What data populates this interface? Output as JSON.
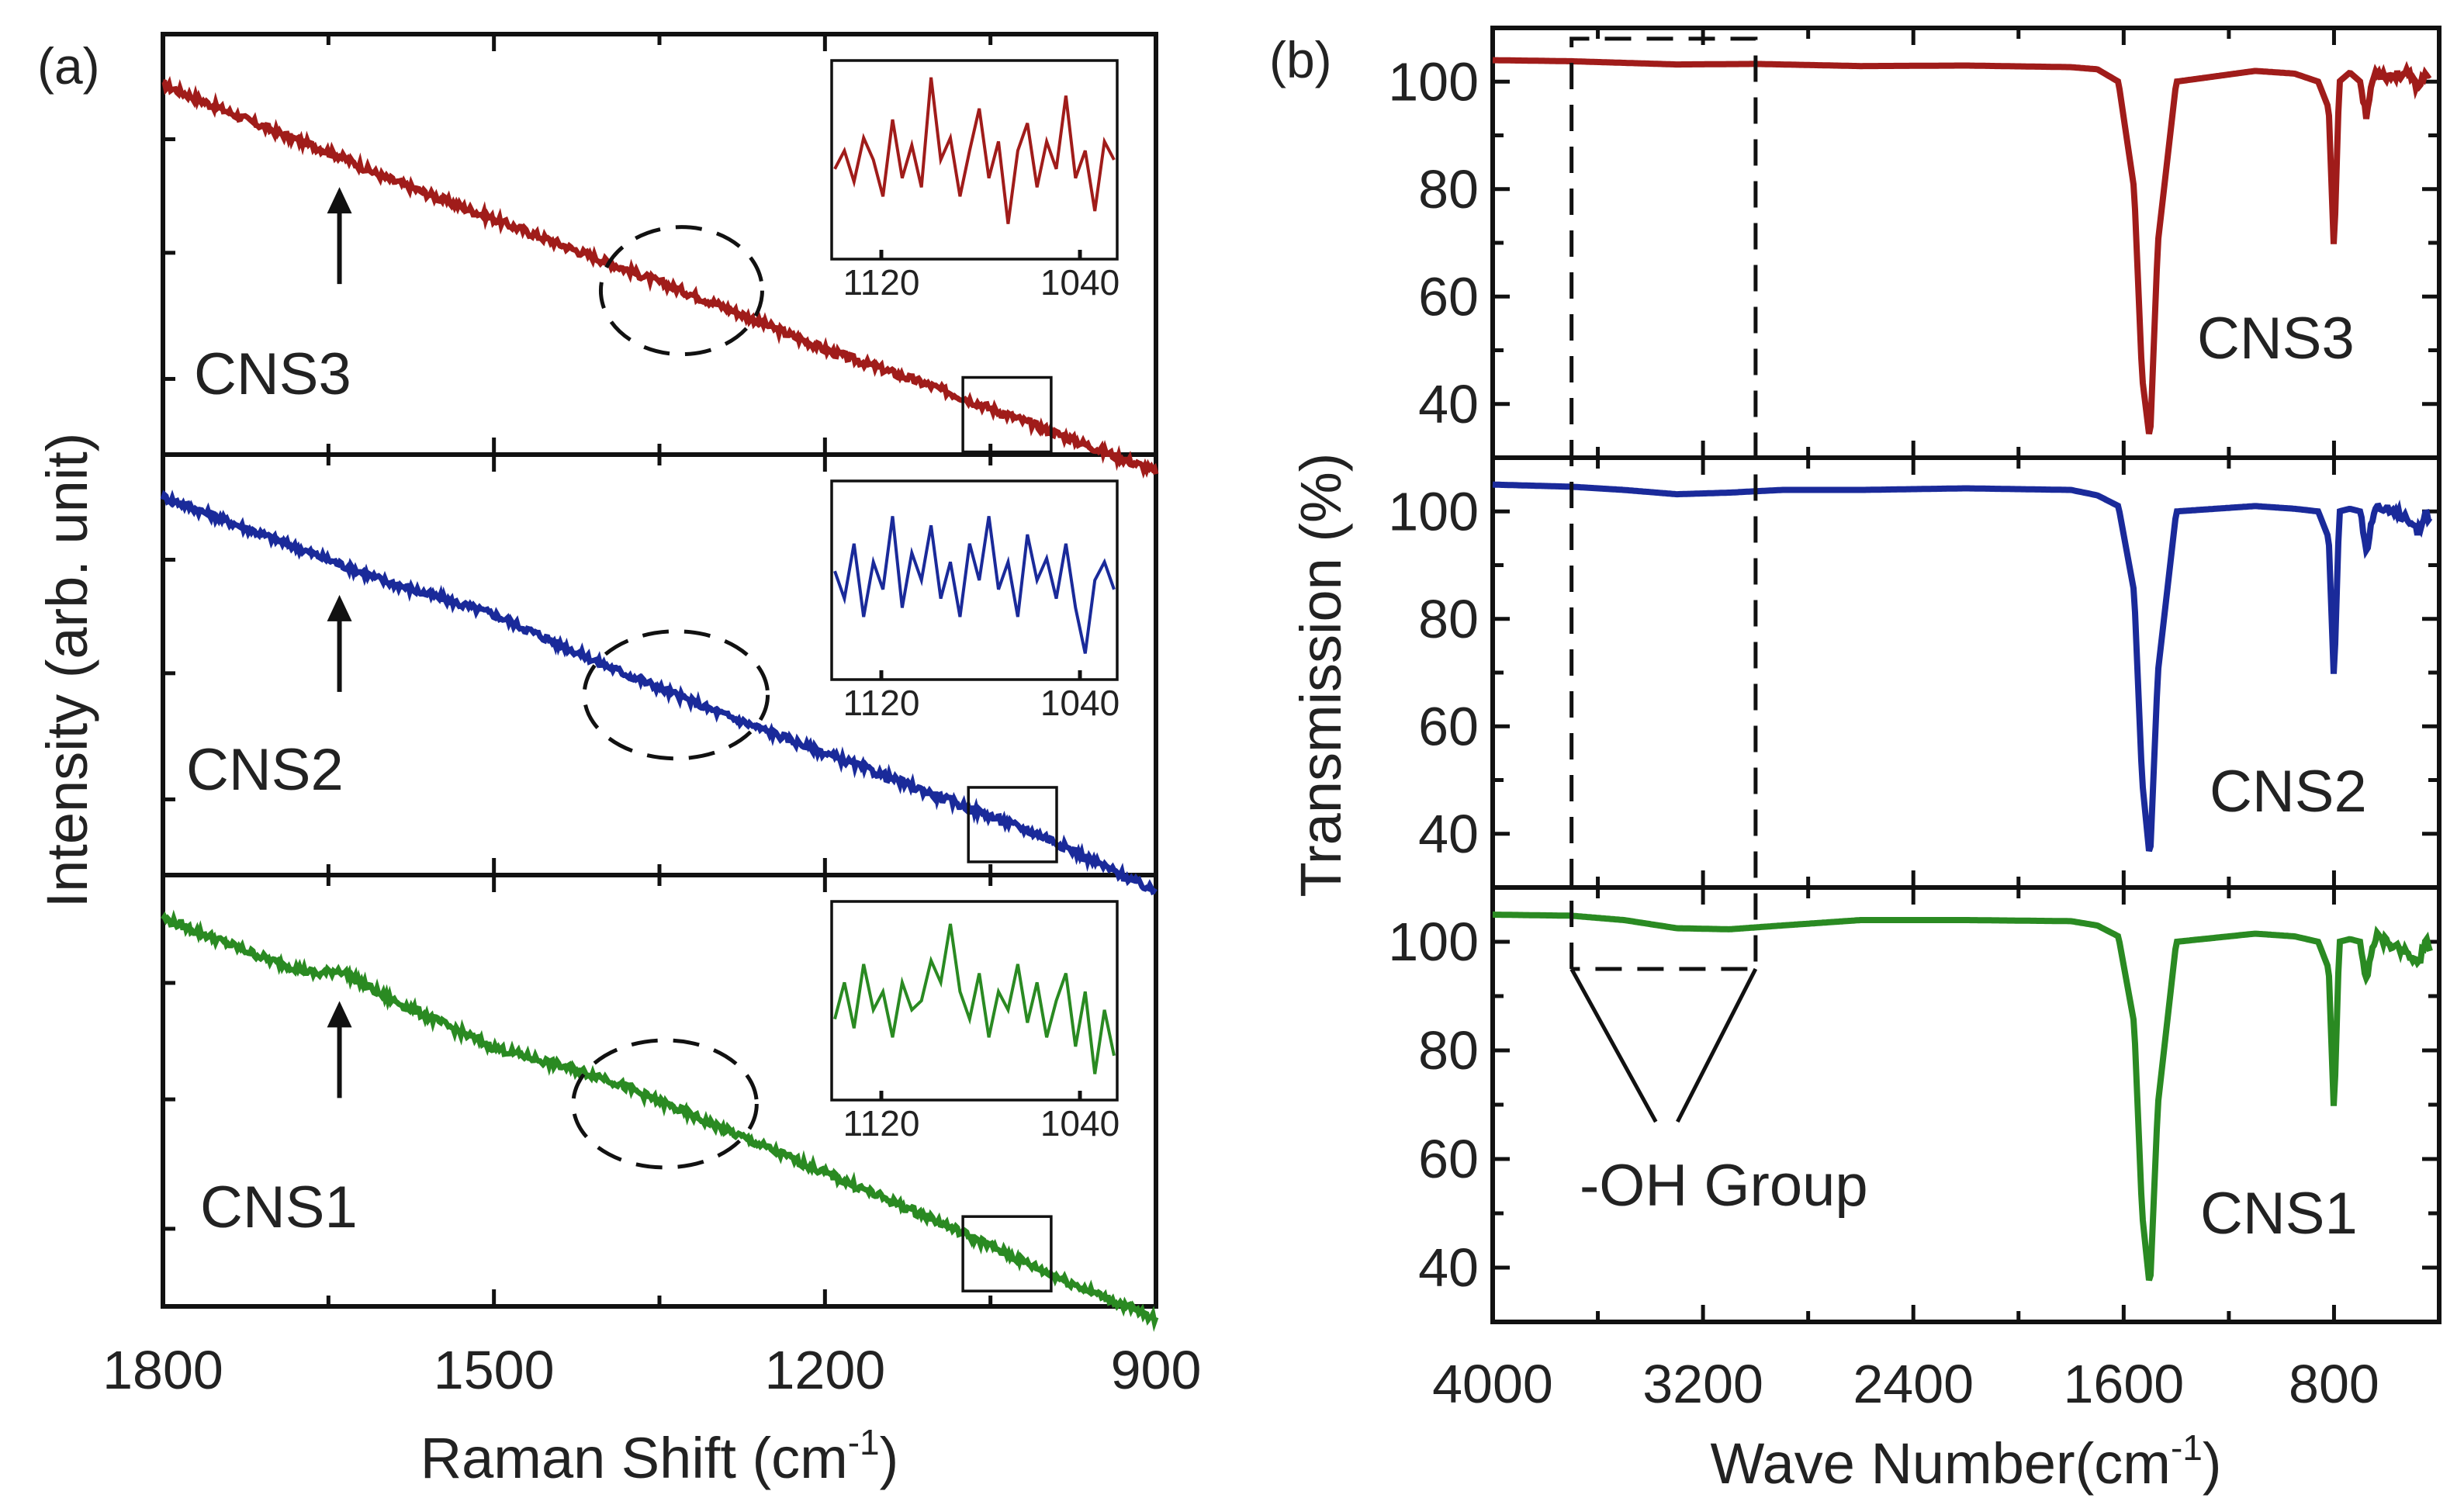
{
  "chart_data": [
    {
      "panel": "(a)",
      "type": "line",
      "title": "",
      "xlabel": "Raman Shift (cm",
      "xlabel_sup": "-1",
      "xlabel_close": ")",
      "ylabel": "Intensity (arb. unit)",
      "xlim": [
        1800,
        900
      ],
      "xticks": [
        "1800",
        "1500",
        "1200",
        "900"
      ],
      "series": [
        {
          "name": "CNS3",
          "color": "#a01c1a",
          "x": [
            1800,
            1700,
            1640,
            1600,
            1500,
            1400,
            1300,
            1200,
            1100,
            1000,
            900
          ],
          "y": [
            0.88,
            0.77,
            0.71,
            0.66,
            0.56,
            0.46,
            0.36,
            0.25,
            0.16,
            0.06,
            -0.04
          ],
          "annotations": {
            "arrow_at": 1640,
            "dashed_ellipse": [
              1375,
              1285
            ],
            "box": [
              1075,
              995
            ],
            "inset": {
              "x_range": [
                1140,
                1025
              ],
              "ticks": [
                "1120",
                "1040"
              ],
              "y": [
                0.45,
                0.55,
                0.38,
                0.62,
                0.5,
                0.3,
                0.72,
                0.4,
                0.58,
                0.35,
                0.95,
                0.5,
                0.62,
                0.3,
                0.55,
                0.78,
                0.4,
                0.6,
                0.15,
                0.55,
                0.7,
                0.35,
                0.6,
                0.45,
                0.85,
                0.4,
                0.55,
                0.22,
                0.6,
                0.5
              ]
            }
          }
        },
        {
          "name": "CNS2",
          "color": "#1a2a9a",
          "x": [
            1800,
            1700,
            1640,
            1600,
            1500,
            1400,
            1300,
            1200,
            1100,
            1000,
            900
          ],
          "y": [
            0.9,
            0.8,
            0.74,
            0.7,
            0.62,
            0.5,
            0.39,
            0.29,
            0.19,
            0.09,
            -0.04
          ],
          "annotations": {
            "arrow_at": 1640,
            "dashed_ellipse": [
              1390,
              1280
            ],
            "box": [
              1070,
              990
            ],
            "inset": {
              "x_range": [
                1140,
                1025
              ],
              "ticks": [
                "1120",
                "1040"
              ],
              "y": [
                0.55,
                0.4,
                0.7,
                0.3,
                0.6,
                0.45,
                0.85,
                0.35,
                0.65,
                0.5,
                0.8,
                0.4,
                0.6,
                0.3,
                0.7,
                0.5,
                0.85,
                0.45,
                0.6,
                0.3,
                0.75,
                0.5,
                0.62,
                0.4,
                0.7,
                0.35,
                0.1,
                0.5,
                0.6,
                0.45
              ]
            }
          }
        },
        {
          "name": "CNS1",
          "color": "#2a8a22",
          "x": [
            1800,
            1700,
            1660,
            1640,
            1600,
            1500,
            1400,
            1300,
            1200,
            1100,
            1000,
            900
          ],
          "y": [
            0.9,
            0.8,
            0.77,
            0.78,
            0.72,
            0.6,
            0.53,
            0.42,
            0.31,
            0.2,
            0.08,
            -0.03
          ],
          "annotations": {
            "arrow_at": 1640,
            "dashed_ellipse": [
              1400,
              1290
            ],
            "box": [
              1075,
              995
            ],
            "inset": {
              "x_range": [
                1140,
                1025
              ],
              "ticks": [
                "1120",
                "1040"
              ],
              "y": [
                0.4,
                0.6,
                0.35,
                0.7,
                0.45,
                0.55,
                0.3,
                0.6,
                0.45,
                0.5,
                0.72,
                0.6,
                0.92,
                0.55,
                0.4,
                0.65,
                0.3,
                0.55,
                0.45,
                0.7,
                0.38,
                0.6,
                0.3,
                0.5,
                0.65,
                0.25,
                0.55,
                0.1,
                0.45,
                0.2
              ]
            }
          }
        }
      ]
    },
    {
      "panel": "(b)",
      "type": "line",
      "title": "",
      "xlabel": "Wave Number(cm",
      "xlabel_sup": "-1",
      "xlabel_close": ")",
      "ylabel": "Transmission (%)",
      "xlim": [
        4000,
        400
      ],
      "xticks": [
        "4000",
        "3200",
        "2400",
        "1600",
        "800"
      ],
      "ylim": [
        30,
        110
      ],
      "yticks": [
        "40",
        "60",
        "80",
        "100"
      ],
      "annotation_label": "-OH Group",
      "oh_region": [
        3700,
        3000
      ],
      "series": [
        {
          "name": "CNS3",
          "color": "#a01c1a",
          "x": [
            4000,
            3700,
            3500,
            3300,
            3000,
            2600,
            2200,
            1800,
            1700,
            1620,
            1560,
            1530,
            1500,
            1470,
            1400,
            1100,
            950,
            860,
            820,
            800,
            780,
            740,
            700,
            675,
            660,
            640,
            600,
            520,
            480,
            450,
            430
          ],
          "y": [
            104,
            103.8,
            103.5,
            103.2,
            103.3,
            102.9,
            103,
            102.7,
            102.3,
            100,
            80,
            45,
            33,
            70,
            100,
            102,
            101.5,
            100,
            95,
            68,
            100,
            101.7,
            100,
            93,
            99,
            102,
            101,
            101.5,
            99,
            102,
            100
          ]
        },
        {
          "name": "CNS2",
          "color": "#1a2a9a",
          "x": [
            4000,
            3700,
            3500,
            3300,
            3100,
            2900,
            2600,
            2200,
            1800,
            1700,
            1620,
            1560,
            1530,
            1500,
            1470,
            1400,
            1100,
            950,
            860,
            820,
            800,
            780,
            740,
            700,
            675,
            660,
            640,
            600,
            520,
            480,
            450,
            430
          ],
          "y": [
            105,
            104.6,
            104,
            103.2,
            103.5,
            104,
            104,
            104.3,
            104,
            103,
            101,
            85,
            50,
            35,
            70,
            100,
            101,
            100.5,
            100,
            95,
            68,
            100,
            100.5,
            100,
            92,
            98,
            101,
            100,
            99,
            96,
            100,
            98
          ]
        },
        {
          "name": "CNS1",
          "color": "#2a8a22",
          "x": [
            4000,
            3700,
            3500,
            3300,
            3100,
            2900,
            2600,
            2200,
            1800,
            1700,
            1620,
            1560,
            1530,
            1500,
            1470,
            1400,
            1100,
            950,
            860,
            820,
            800,
            780,
            740,
            700,
            675,
            660,
            640,
            600,
            520,
            480,
            450,
            430
          ],
          "y": [
            105,
            104.8,
            104,
            102.5,
            102.3,
            103,
            104,
            104,
            103.8,
            103,
            101,
            85,
            50,
            36,
            70,
            100,
            101.5,
            101,
            100,
            95,
            68,
            100,
            100.5,
            100,
            92,
            98,
            101,
            100,
            98,
            96,
            100,
            98
          ]
        }
      ]
    }
  ]
}
